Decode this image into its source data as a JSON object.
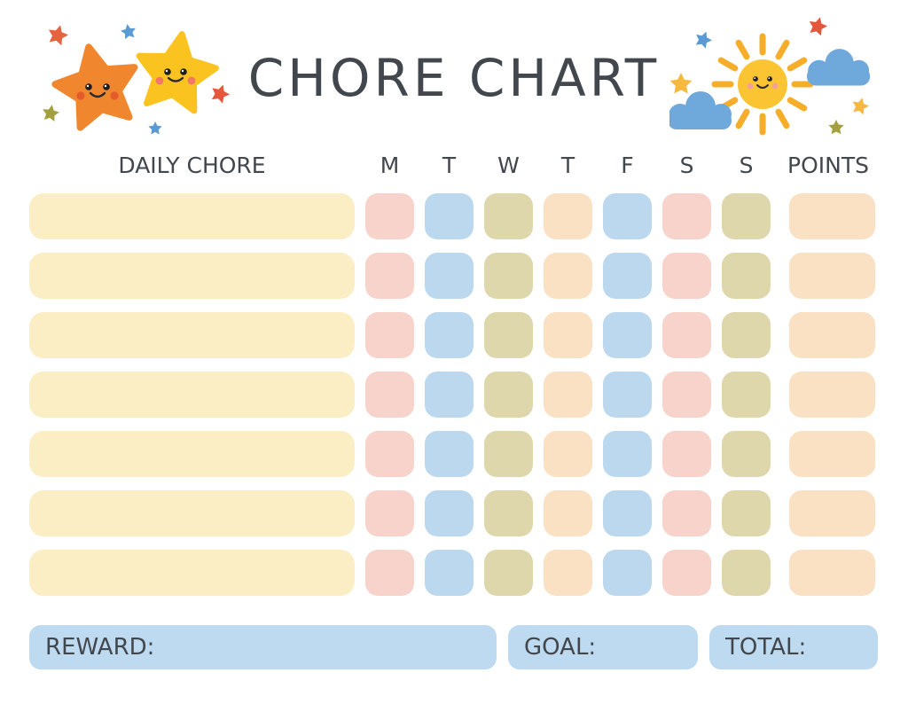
{
  "title": "CHORE CHART",
  "colors": {
    "cream": "#FBEEC5",
    "pink": "#F8D3CB",
    "blue": "#BBD8EF",
    "olive": "#DFD7AC",
    "peach": "#FBE1C3",
    "footer_blue": "#BDDAF0",
    "text": "#42474D",
    "orange_star": "#F0872F",
    "yellow_star": "#FBC31F",
    "sun": "#FBC433",
    "sun_ray": "#F6AE2A",
    "cloud": "#6FA9DC",
    "spark_red": "#E4573D",
    "spark_red_orange": "#E2653F",
    "spark_blue": "#5B9BD5",
    "spark_olive": "#A5A03F",
    "spark_yellow": "#F5B940",
    "blush_orange": "#E45A2B",
    "blush_yellow": "#F2776B",
    "blush_sun": "#F2A19C",
    "face_line": "#2B2B2B"
  },
  "table": {
    "chore_header": "DAILY CHORE",
    "day_headers": [
      "M",
      "T",
      "W",
      "T",
      "F",
      "S",
      "S"
    ],
    "points_header": "POINTS",
    "row_count": 7,
    "day_cell_colors": [
      "pink",
      "blue",
      "olive",
      "peach",
      "blue",
      "pink",
      "olive"
    ],
    "points_cell_color": "peach",
    "chore_cell_color": "cream"
  },
  "footer": {
    "reward_label": "REWARD:",
    "goal_label": "GOAL:",
    "total_label": "TOTAL:"
  }
}
